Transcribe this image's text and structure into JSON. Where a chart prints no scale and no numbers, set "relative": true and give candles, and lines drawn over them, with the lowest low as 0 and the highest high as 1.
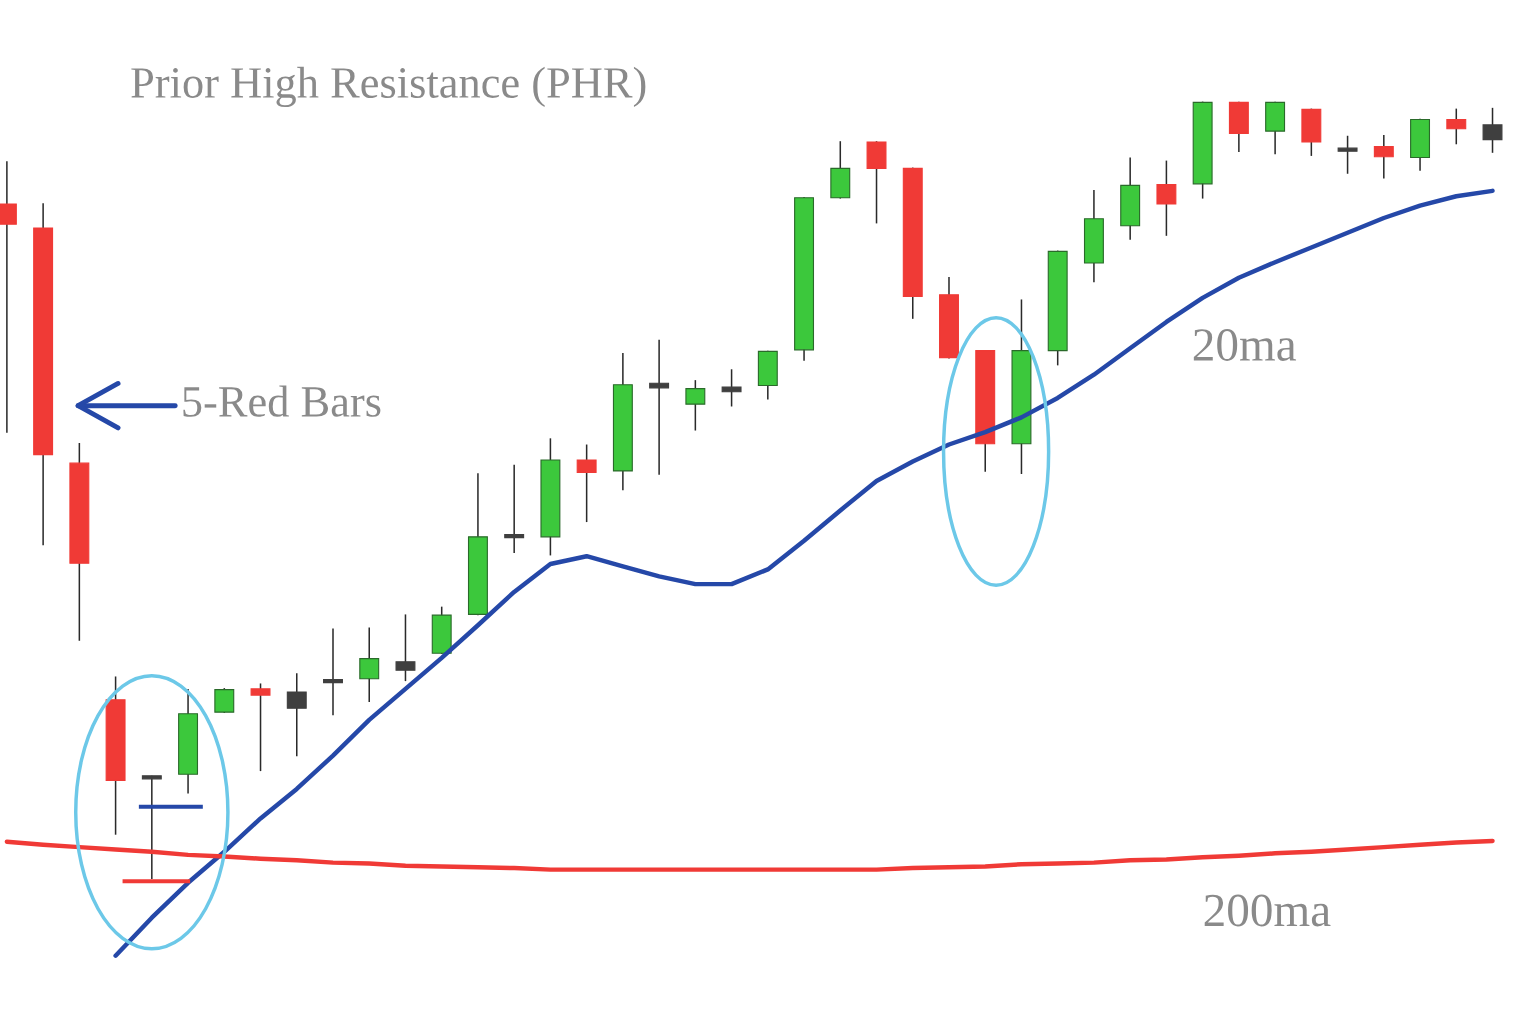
{
  "chart_data": {
    "type": "candlestick",
    "title": "Prior High Resistance (PHR)",
    "relative": true,
    "legend": false,
    "annotations": [
      "5-Red Bars"
    ],
    "categories": [
      null,
      null,
      null,
      null,
      null,
      null,
      null,
      null,
      null,
      null,
      null,
      null,
      null,
      null,
      null,
      null,
      null,
      null,
      null,
      null,
      null,
      null,
      null,
      null,
      null,
      null,
      null,
      null,
      null,
      null,
      null,
      null,
      null,
      null,
      null,
      null,
      null,
      null,
      null,
      null,
      null,
      null
    ],
    "ohlc": [
      [
        0.869,
        0.923,
        0.575,
        0.843
      ],
      [
        0.838,
        0.869,
        0.43,
        0.546
      ],
      [
        0.535,
        0.56,
        0.307,
        0.406
      ],
      [
        0.23,
        0.259,
        0.057,
        0.126
      ],
      [
        0.131,
        0.131,
        0,
        0.128
      ],
      [
        0.134,
        0.243,
        0.11,
        0.212
      ],
      [
        0.214,
        0.244,
        0.214,
        0.243
      ],
      [
        0.244,
        0.25,
        0.139,
        0.236
      ],
      [
        0.24,
        0.263,
        0.158,
        0.219
      ],
      [
        0.253,
        0.321,
        0.211,
        0.252
      ],
      [
        0.257,
        0.322,
        0.228,
        0.283
      ],
      [
        0.279,
        0.339,
        0.255,
        0.268
      ],
      [
        0.29,
        0.349,
        0.29,
        0.339
      ],
      [
        0.34,
        0.521,
        0.34,
        0.44
      ],
      [
        0.44,
        0.532,
        0.42,
        0.439
      ],
      [
        0.44,
        0.566,
        0.417,
        0.539
      ],
      [
        0.539,
        0.558,
        0.46,
        0.523
      ],
      [
        0.525,
        0.676,
        0.501,
        0.636
      ],
      [
        0.638,
        0.693,
        0.521,
        0.632
      ],
      [
        0.611,
        0.641,
        0.578,
        0.631
      ],
      [
        0.633,
        0.655,
        0.609,
        0.627
      ],
      [
        0.635,
        0.679,
        0.618,
        0.679
      ],
      [
        0.681,
        0.877,
        0.668,
        0.877
      ],
      [
        0.877,
        0.949,
        0.877,
        0.915
      ],
      [
        0.949,
        0.949,
        0.845,
        0.915
      ],
      [
        0.915,
        0.915,
        0.722,
        0.75
      ],
      [
        0.752,
        0.774,
        0.671,
        0.671
      ],
      [
        0.68,
        0.68,
        0.525,
        0.56
      ],
      [
        0.56,
        0.745,
        0.522,
        0.68
      ],
      [
        0.68,
        0.808,
        0.662,
        0.808
      ],
      [
        0.793,
        0.886,
        0.769,
        0.85
      ],
      [
        0.841,
        0.928,
        0.824,
        0.893
      ],
      [
        0.894,
        0.924,
        0.829,
        0.869
      ],
      [
        0.895,
        1,
        0.877,
        1
      ],
      [
        1,
        1,
        0.937,
        0.96
      ],
      [
        0.963,
        1,
        0.934,
        1
      ],
      [
        0.991,
        0.991,
        0.932,
        0.949
      ],
      [
        0.938,
        0.956,
        0.909,
        0.937
      ],
      [
        0.943,
        0.957,
        0.903,
        0.93
      ],
      [
        0.929,
        0.978,
        0.913,
        0.978
      ],
      [
        0.978,
        0.991,
        0.947,
        0.966
      ],
      [
        0.971,
        0.992,
        0.936,
        0.952
      ]
    ],
    "colors": [
      "#f03a36",
      "#f03a36",
      "#f03a36",
      "#f03a36",
      "#3f3f3f",
      "#3cc83c",
      "#3cc83c",
      "#f03a36",
      "#3f3f3f",
      "#3f3f3f",
      "#3cc83c",
      "#3f3f3f",
      "#3cc83c",
      "#3cc83c",
      "#3f3f3f",
      "#3cc83c",
      "#f03a36",
      "#3cc83c",
      "#3f3f3f",
      "#3cc83c",
      "#3f3f3f",
      "#3cc83c",
      "#3cc83c",
      "#3cc83c",
      "#f03a36",
      "#f03a36",
      "#f03a36",
      "#f03a36",
      "#3cc83c",
      "#3cc83c",
      "#3cc83c",
      "#3cc83c",
      "#f03a36",
      "#3cc83c",
      "#f03a36",
      "#3cc83c",
      "#f03a36",
      "#3f3f3f",
      "#f03a36",
      "#3cc83c",
      "#f03a36",
      "#3f3f3f"
    ],
    "series": [
      {
        "name": "20ma",
        "type": "line",
        "color": "#2548a8",
        "values": [
          null,
          null,
          null,
          -0.1,
          -0.051,
          -0.006,
          0.034,
          0.077,
          0.115,
          0.158,
          0.204,
          0.244,
          0.284,
          0.326,
          0.369,
          0.405,
          0.415,
          0.402,
          0.389,
          0.379,
          0.379,
          0.398,
          0.435,
          0.474,
          0.512,
          0.537,
          0.559,
          0.575,
          0.594,
          0.619,
          0.649,
          0.683,
          0.717,
          0.748,
          0.774,
          0.794,
          0.813,
          0.832,
          0.851,
          0.867,
          0.879,
          0.886
        ]
      },
      {
        "name": "200ma",
        "type": "line",
        "color": "#f03a36",
        "values": [
          0.047,
          0.043,
          0.04,
          0.037,
          0.034,
          0.03,
          0.028,
          0.025,
          0.023,
          0.02,
          0.019,
          0.016,
          0.015,
          0.014,
          0.013,
          0.011,
          0.011,
          0.011,
          0.011,
          0.011,
          0.011,
          0.011,
          0.011,
          0.011,
          0.011,
          0.013,
          0.014,
          0.015,
          0.018,
          0.019,
          0.02,
          0.023,
          0.024,
          0.027,
          0.029,
          0.032,
          0.034,
          0.037,
          0.04,
          0.043,
          0.046,
          0.048
        ]
      }
    ]
  }
}
